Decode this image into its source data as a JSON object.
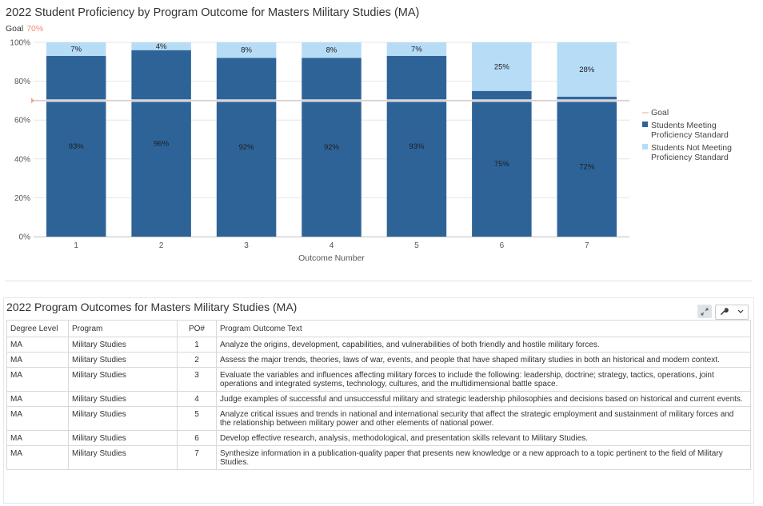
{
  "chart_data": {
    "type": "bar",
    "stacked": true,
    "title": "2022 Student Proficiency by Program Outcome for Masters Military Studies (MA)",
    "goal_label": "Goal",
    "goal_value_label": "70%",
    "goal": 70,
    "xlabel": "Outcome Number",
    "ylabel": "",
    "ylim": [
      0,
      100
    ],
    "yticks": [
      "0%",
      "20%",
      "40%",
      "60%",
      "80%",
      "100%"
    ],
    "categories": [
      "1",
      "2",
      "3",
      "4",
      "5",
      "6",
      "7"
    ],
    "series": [
      {
        "name": "Students Meeting Proficiency Standard",
        "values": [
          93,
          96,
          92,
          92,
          93,
          75,
          72
        ],
        "labels": [
          "93%",
          "96%",
          "92%",
          "92%",
          "93%",
          "75%",
          "72%"
        ],
        "color": "#2e6398"
      },
      {
        "name": "Students Not Meeting Proficiency Standard",
        "values": [
          7,
          4,
          8,
          8,
          7,
          25,
          28
        ],
        "labels": [
          "7%",
          "4%",
          "8%",
          "8%",
          "7%",
          "25%",
          "28%"
        ],
        "color": "#b6dcf6"
      }
    ],
    "legend": [
      {
        "name": "Goal",
        "color": "#f3a48d",
        "kind": "line"
      },
      {
        "name": "Students Meeting Proficiency Standard",
        "lines": [
          "Students Meeting",
          "Proficiency Standard"
        ],
        "color": "#2e6398",
        "kind": "box"
      },
      {
        "name": "Students Not Meeting Proficiency Standard",
        "lines": [
          "Students Not Meeting",
          "Proficiency Standard"
        ],
        "color": "#b6dcf6",
        "kind": "box"
      }
    ],
    "legend_position": "right",
    "grid": true
  },
  "table": {
    "title": "2022 Program Outcomes for Masters Military Studies (MA)",
    "headers": [
      "Degree Level",
      "Program",
      "PO#",
      "Program Outcome Text"
    ],
    "rows": [
      [
        "MA",
        "Military Studies",
        "1",
        "Analyze the origins, development, capabilities, and vulnerabilities of both friendly and hostile military forces."
      ],
      [
        "MA",
        "Military Studies",
        "2",
        "Assess the major trends, theories, laws of war, events, and people that have shaped military studies in both an historical and modern context."
      ],
      [
        "MA",
        "Military Studies",
        "3",
        "Evaluate the variables and influences affecting military forces to include the following: leadership, doctrine; strategy, tactics, operations, joint operations and integrated systems, technology, cultures, and the multidimensional battle space."
      ],
      [
        "MA",
        "Military Studies",
        "4",
        "Judge examples of successful and unsuccessful military and strategic leadership philosophies and decisions based on historical and current events."
      ],
      [
        "MA",
        "Military Studies",
        "5",
        "Analyze critical issues and trends in national and international security that affect the strategic employment and sustainment of military forces and the relationship between military power and other elements of national power."
      ],
      [
        "MA",
        "Military Studies",
        "6",
        "Develop effective research, analysis, methodological, and presentation skills relevant to Military Studies."
      ],
      [
        "MA",
        "Military Studies",
        "7",
        "Synthesize information in a publication-quality paper that presents new knowledge or a new approach to a topic pertinent to the field of Military Studies."
      ]
    ]
  },
  "icons": {
    "expand": "expand-icon",
    "wrench": "wrench-icon",
    "chevron": "chevron-down-icon"
  }
}
